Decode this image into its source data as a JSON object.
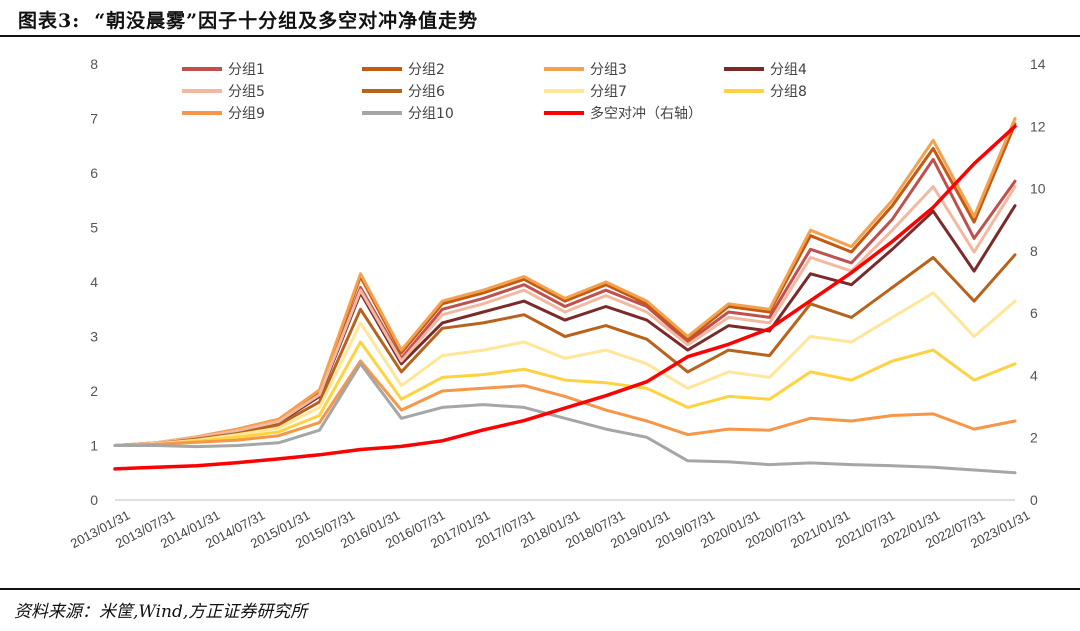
{
  "figure_label": "图表3:",
  "title": "“朝没晨雾”因子十分组及多空对冲净值走势",
  "source": "资料来源：米筐,Wind,方正证券研究所",
  "chart_data": {
    "type": "line",
    "title": "“朝没晨雾”因子十分组及多空对冲净值走势",
    "left_axis": {
      "range": [
        0,
        8
      ],
      "ticks": [
        "0",
        "1",
        "2",
        "3",
        "4",
        "5",
        "6",
        "7",
        "8"
      ]
    },
    "right_axis": {
      "range": [
        0,
        14
      ],
      "ticks": [
        "0",
        "2",
        "4",
        "6",
        "8",
        "10",
        "12",
        "14"
      ]
    },
    "x_tick_labels": [
      "2013/01/31",
      "2013/07/31",
      "2014/01/31",
      "2014/07/31",
      "2015/01/31",
      "2015/07/31",
      "2016/01/31",
      "2016/07/31",
      "2017/01/31",
      "2017/07/31",
      "2018/01/31",
      "2018/07/31",
      "2019/01/31",
      "2019/07/31",
      "2020/01/31",
      "2020/07/31",
      "2021/01/31",
      "2021/07/31",
      "2022/01/31",
      "2022/07/31",
      "2023/01/31"
    ],
    "legend_position": "top",
    "series": [
      {
        "name": "分组1",
        "axis": "left",
        "color": "#C0504D",
        "width": 3,
        "values": [
          1,
          1.05,
          1.15,
          1.28,
          1.45,
          1.95,
          3.9,
          2.6,
          3.5,
          3.7,
          3.95,
          3.55,
          3.85,
          3.55,
          2.9,
          3.45,
          3.35,
          4.6,
          4.35,
          5.15,
          6.25,
          4.8,
          5.85
        ]
      },
      {
        "name": "分组2",
        "axis": "left",
        "color": "#C65911",
        "width": 3,
        "values": [
          1,
          1.05,
          1.16,
          1.3,
          1.48,
          2.0,
          4.1,
          2.7,
          3.6,
          3.8,
          4.05,
          3.65,
          3.95,
          3.6,
          2.95,
          3.55,
          3.45,
          4.85,
          4.55,
          5.4,
          6.45,
          5.1,
          6.9
        ]
      },
      {
        "name": "分组3",
        "axis": "left",
        "color": "#F4A14F",
        "width": 3,
        "values": [
          1,
          1.05,
          1.16,
          1.3,
          1.48,
          2.02,
          4.15,
          2.75,
          3.65,
          3.85,
          4.1,
          3.7,
          4.0,
          3.65,
          3.0,
          3.6,
          3.5,
          4.95,
          4.65,
          5.5,
          6.6,
          5.2,
          7.0
        ]
      },
      {
        "name": "分组4",
        "axis": "left",
        "color": "#7B2A2A",
        "width": 3,
        "values": [
          1,
          1.04,
          1.14,
          1.26,
          1.42,
          1.9,
          3.8,
          2.5,
          3.25,
          3.45,
          3.65,
          3.3,
          3.55,
          3.3,
          2.75,
          3.2,
          3.1,
          4.15,
          3.95,
          4.6,
          5.3,
          4.2,
          5.4
        ]
      },
      {
        "name": "分组5",
        "axis": "left",
        "color": "#F2B8A0",
        "width": 3,
        "values": [
          1,
          1.05,
          1.15,
          1.27,
          1.44,
          1.93,
          3.85,
          2.55,
          3.4,
          3.6,
          3.85,
          3.45,
          3.75,
          3.45,
          2.85,
          3.35,
          3.25,
          4.45,
          4.2,
          4.95,
          5.75,
          4.55,
          5.75
        ]
      },
      {
        "name": "分组6",
        "axis": "left",
        "color": "#B8621B",
        "width": 3,
        "values": [
          1,
          1.03,
          1.12,
          1.22,
          1.38,
          1.8,
          3.5,
          2.35,
          3.15,
          3.25,
          3.4,
          3.0,
          3.2,
          2.95,
          2.35,
          2.75,
          2.65,
          3.6,
          3.35,
          3.9,
          4.45,
          3.65,
          4.5
        ]
      },
      {
        "name": "分组7",
        "axis": "left",
        "color": "#FFE699",
        "width": 3,
        "values": [
          1,
          1.03,
          1.1,
          1.2,
          1.32,
          1.7,
          3.25,
          2.1,
          2.65,
          2.75,
          2.9,
          2.6,
          2.75,
          2.5,
          2.05,
          2.35,
          2.25,
          3.0,
          2.9,
          3.35,
          3.8,
          3.0,
          3.65
        ]
      },
      {
        "name": "分组8",
        "axis": "left",
        "color": "#FFD23F",
        "width": 3,
        "values": [
          1,
          1.02,
          1.08,
          1.15,
          1.25,
          1.55,
          2.9,
          1.85,
          2.25,
          2.3,
          2.4,
          2.2,
          2.15,
          2.05,
          1.7,
          1.9,
          1.85,
          2.35,
          2.2,
          2.55,
          2.75,
          2.2,
          2.5
        ]
      },
      {
        "name": "分组9",
        "axis": "left",
        "color": "#F79646",
        "width": 3,
        "values": [
          1,
          1.02,
          1.06,
          1.1,
          1.18,
          1.42,
          2.55,
          1.65,
          2.0,
          2.05,
          2.1,
          1.9,
          1.65,
          1.45,
          1.2,
          1.3,
          1.28,
          1.5,
          1.45,
          1.55,
          1.58,
          1.3,
          1.45
        ]
      },
      {
        "name": "分组10",
        "axis": "left",
        "color": "#A6A6A6",
        "width": 3,
        "values": [
          1,
          1.0,
          0.98,
          1.0,
          1.05,
          1.28,
          2.5,
          1.5,
          1.7,
          1.75,
          1.7,
          1.5,
          1.3,
          1.15,
          0.72,
          0.7,
          0.65,
          0.68,
          0.65,
          0.63,
          0.6,
          0.55,
          0.5
        ]
      },
      {
        "name": "多空对冲（右轴）",
        "axis": "right",
        "color": "#FF0000",
        "width": 3.5,
        "values": [
          1.0,
          1.05,
          1.1,
          1.2,
          1.32,
          1.45,
          1.62,
          1.72,
          1.9,
          2.25,
          2.55,
          2.95,
          3.35,
          3.8,
          4.6,
          5.0,
          5.5,
          6.4,
          7.3,
          8.3,
          9.4,
          10.8,
          12.0
        ]
      }
    ]
  }
}
